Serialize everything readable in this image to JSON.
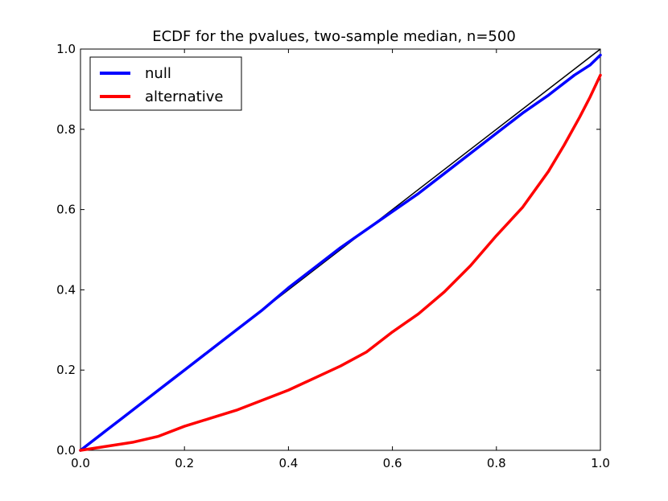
{
  "chart_data": {
    "type": "line",
    "title": "ECDF for the pvalues, two-sample median, n=500",
    "xlabel": "",
    "ylabel": "",
    "xlim": [
      0.0,
      1.0
    ],
    "ylim": [
      0.0,
      1.0
    ],
    "xticks": [
      "0.0",
      "0.2",
      "0.4",
      "0.6",
      "0.8",
      "1.0"
    ],
    "yticks": [
      "0.0",
      "0.2",
      "0.4",
      "0.6",
      "0.8",
      "1.0"
    ],
    "grid": false,
    "legend_position": "top-left",
    "reference_line": {
      "x": [
        0.0,
        1.0
      ],
      "y": [
        0.0,
        1.0
      ],
      "color": "#000000"
    },
    "series": [
      {
        "name": "null",
        "color": "#0000ff",
        "x": [
          0.0,
          0.02,
          0.05,
          0.08,
          0.1,
          0.13,
          0.15,
          0.18,
          0.2,
          0.25,
          0.3,
          0.35,
          0.4,
          0.45,
          0.5,
          0.55,
          0.6,
          0.65,
          0.7,
          0.75,
          0.8,
          0.85,
          0.9,
          0.92,
          0.95,
          0.98,
          1.0
        ],
        "y": [
          0.0,
          0.02,
          0.05,
          0.08,
          0.1,
          0.13,
          0.15,
          0.18,
          0.2,
          0.25,
          0.3,
          0.35,
          0.405,
          0.455,
          0.505,
          0.55,
          0.595,
          0.64,
          0.69,
          0.74,
          0.79,
          0.84,
          0.885,
          0.905,
          0.935,
          0.96,
          0.985
        ]
      },
      {
        "name": "alternative",
        "color": "#ff0000",
        "x": [
          0.0,
          0.05,
          0.1,
          0.15,
          0.2,
          0.25,
          0.3,
          0.35,
          0.4,
          0.45,
          0.5,
          0.55,
          0.6,
          0.65,
          0.7,
          0.75,
          0.8,
          0.85,
          0.9,
          0.93,
          0.96,
          0.98,
          1.0
        ],
        "y": [
          0.0,
          0.01,
          0.02,
          0.035,
          0.06,
          0.08,
          0.1,
          0.125,
          0.15,
          0.18,
          0.21,
          0.245,
          0.295,
          0.34,
          0.395,
          0.46,
          0.535,
          0.605,
          0.695,
          0.76,
          0.83,
          0.88,
          0.935
        ]
      }
    ]
  }
}
